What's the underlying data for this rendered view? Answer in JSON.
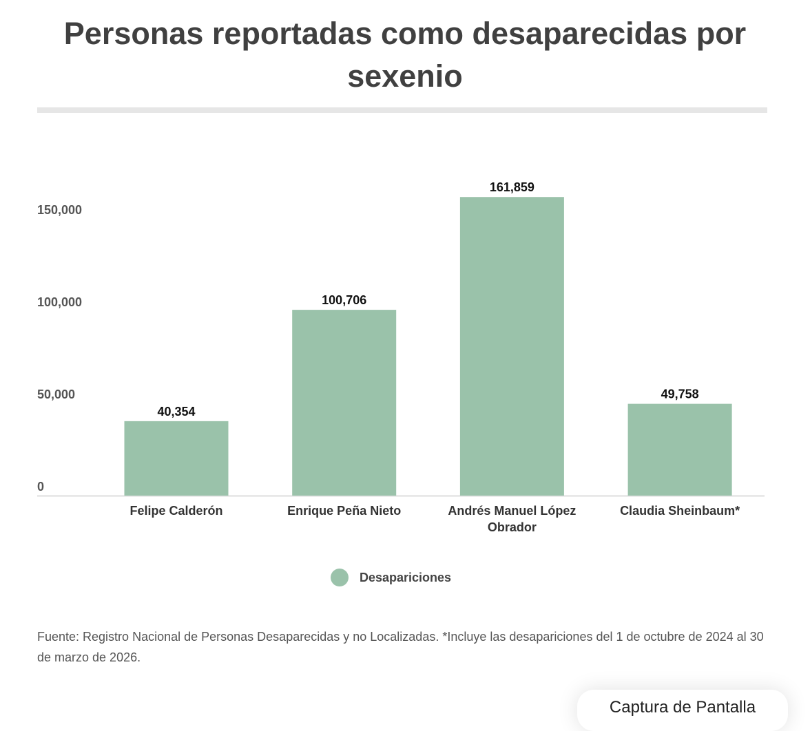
{
  "chart_data": {
    "type": "bar",
    "title": "Personas reportadas como desaparecidas por sexenio",
    "categories": [
      "Felipe Calderón",
      "Enrique Peña Nieto",
      "Andrés Manuel López Obrador",
      "Claudia Sheinbaum*"
    ],
    "category_lines": [
      [
        "Felipe Calderón"
      ],
      [
        "Enrique Peña Nieto"
      ],
      [
        "Andrés Manuel López",
        "Obrador"
      ],
      [
        "Claudia Sheinbaum*"
      ]
    ],
    "series": [
      {
        "name": "Desapariciones",
        "values": [
          40354,
          100706,
          161859,
          49758
        ],
        "color": "#9ac2aa"
      }
    ],
    "value_labels": [
      "40,354",
      "100,706",
      "161,859",
      "49,758"
    ],
    "yticks": [
      0,
      50000,
      100000,
      150000
    ],
    "ytick_labels": [
      "0",
      "50,000",
      "100,000",
      "150,000"
    ],
    "ylim": [
      0,
      170000
    ],
    "xlabel": "",
    "ylabel": "",
    "legend_position": "bottom",
    "grid": false
  },
  "source": "Fuente: Registro Nacional de Personas Desaparecidas y no Localizadas. *Incluye las desapariciones del 1 de octubre de 2024 al 30 de marzo de 2026.",
  "popup": {
    "label": "Captura de Pantalla"
  }
}
